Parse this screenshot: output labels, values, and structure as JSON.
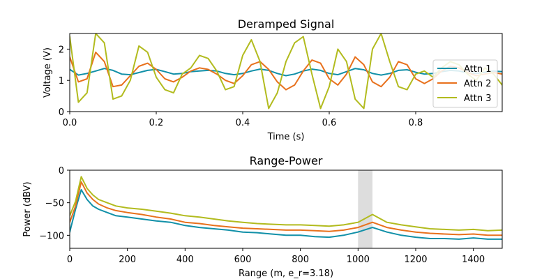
{
  "chart_data": [
    {
      "type": "line",
      "title": "Deramped Signal",
      "xlabel": "Time (s)",
      "ylabel": "Voltage (V)",
      "xlim": [
        0,
        1
      ],
      "ylim": [
        0,
        2.5
      ],
      "xticks": [
        0.0,
        0.2,
        0.4,
        0.6,
        0.8
      ],
      "xtick_labels": [
        "0.0",
        "0.2",
        "0.4",
        "0.6",
        "0.8"
      ],
      "yticks": [
        0,
        1,
        2
      ],
      "ytick_labels": [
        "0",
        "1",
        "2"
      ],
      "legend": {
        "position": "right",
        "entries": [
          "Attn 1",
          "Attn 2",
          "Attn 3"
        ]
      },
      "grid": false,
      "series": [
        {
          "name": "Attn 1",
          "color": "#1190a8",
          "x": [
            0.0,
            0.02,
            0.04,
            0.06,
            0.08,
            0.1,
            0.12,
            0.14,
            0.16,
            0.18,
            0.2,
            0.22,
            0.24,
            0.26,
            0.28,
            0.3,
            0.32,
            0.34,
            0.36,
            0.38,
            0.4,
            0.42,
            0.44,
            0.46,
            0.48,
            0.5,
            0.52,
            0.54,
            0.56,
            0.58,
            0.6,
            0.62,
            0.64,
            0.66,
            0.68,
            0.7,
            0.72,
            0.74,
            0.76,
            0.78,
            0.8,
            0.82,
            0.84,
            0.86,
            0.88,
            0.9,
            0.92,
            0.94,
            0.96,
            0.98,
            1.0
          ],
          "y": [
            1.35,
            1.17,
            1.22,
            1.3,
            1.38,
            1.32,
            1.2,
            1.18,
            1.25,
            1.32,
            1.35,
            1.28,
            1.2,
            1.22,
            1.28,
            1.3,
            1.32,
            1.3,
            1.22,
            1.18,
            1.22,
            1.3,
            1.36,
            1.32,
            1.22,
            1.15,
            1.2,
            1.3,
            1.36,
            1.32,
            1.22,
            1.18,
            1.28,
            1.38,
            1.34,
            1.22,
            1.17,
            1.22,
            1.32,
            1.34,
            1.26,
            1.2,
            1.22,
            1.28,
            1.32,
            1.3,
            1.24,
            1.22,
            1.26,
            1.3,
            1.28
          ]
        },
        {
          "name": "Attn 2",
          "color": "#e8711d",
          "x": [
            0.0,
            0.02,
            0.04,
            0.06,
            0.08,
            0.1,
            0.12,
            0.14,
            0.16,
            0.18,
            0.2,
            0.22,
            0.24,
            0.26,
            0.28,
            0.3,
            0.32,
            0.34,
            0.36,
            0.38,
            0.4,
            0.42,
            0.44,
            0.46,
            0.48,
            0.5,
            0.52,
            0.54,
            0.56,
            0.58,
            0.6,
            0.62,
            0.64,
            0.66,
            0.68,
            0.7,
            0.72,
            0.74,
            0.76,
            0.78,
            0.8,
            0.82,
            0.84,
            0.86,
            0.88,
            0.9,
            0.92,
            0.94,
            0.96,
            0.98,
            1.0
          ],
          "y": [
            1.75,
            0.95,
            1.05,
            1.9,
            1.6,
            0.8,
            0.85,
            1.15,
            1.45,
            1.55,
            1.35,
            1.05,
            0.95,
            1.1,
            1.3,
            1.4,
            1.35,
            1.2,
            1.0,
            0.9,
            1.15,
            1.5,
            1.6,
            1.35,
            0.95,
            0.7,
            0.85,
            1.3,
            1.65,
            1.55,
            1.05,
            0.85,
            1.2,
            1.75,
            1.5,
            0.95,
            0.8,
            1.1,
            1.6,
            1.5,
            1.05,
            0.9,
            1.05,
            1.3,
            1.45,
            1.4,
            1.25,
            1.15,
            1.2,
            1.25,
            1.2
          ]
        },
        {
          "name": "Attn 3",
          "color": "#b2bb1e",
          "x": [
            0.0,
            0.02,
            0.04,
            0.06,
            0.08,
            0.1,
            0.12,
            0.14,
            0.16,
            0.18,
            0.2,
            0.22,
            0.24,
            0.26,
            0.28,
            0.3,
            0.32,
            0.34,
            0.36,
            0.38,
            0.4,
            0.42,
            0.44,
            0.46,
            0.48,
            0.5,
            0.52,
            0.54,
            0.56,
            0.58,
            0.6,
            0.62,
            0.64,
            0.66,
            0.68,
            0.7,
            0.72,
            0.74,
            0.76,
            0.78,
            0.8,
            0.82,
            0.84,
            0.86,
            0.88,
            0.9,
            0.92,
            0.94,
            0.96,
            0.98,
            1.0
          ],
          "y": [
            2.4,
            0.3,
            0.6,
            2.5,
            2.2,
            0.4,
            0.5,
            1.0,
            2.1,
            1.9,
            1.1,
            0.7,
            0.6,
            1.2,
            1.4,
            1.8,
            1.7,
            1.3,
            0.7,
            0.8,
            1.8,
            2.3,
            1.6,
            0.1,
            0.6,
            1.6,
            2.2,
            2.4,
            1.2,
            0.1,
            0.8,
            2.0,
            1.6,
            0.4,
            0.1,
            2.0,
            2.5,
            1.6,
            0.8,
            0.7,
            1.2,
            1.3,
            1.1,
            1.4,
            1.6,
            1.5,
            1.2,
            1.0,
            1.4,
            1.2,
            0.85
          ]
        }
      ]
    },
    {
      "type": "line",
      "title": "Range-Power",
      "xlabel": "Range (m, e_r=3.18)",
      "ylabel": "Power (dBV)",
      "xlim": [
        0,
        1500
      ],
      "ylim": [
        -120,
        0
      ],
      "xticks": [
        0,
        200,
        400,
        600,
        800,
        1000,
        1200,
        1400
      ],
      "xtick_labels": [
        "0",
        "200",
        "400",
        "600",
        "800",
        "1000",
        "1200",
        "1400"
      ],
      "yticks": [
        0,
        -50,
        -100
      ],
      "ytick_labels": [
        "0",
        "−50",
        "−100"
      ],
      "grid": false,
      "highlight_band": {
        "x0": 1000,
        "x1": 1050,
        "color": "#dddddd"
      },
      "series": [
        {
          "name": "Attn 1",
          "color": "#1190a8",
          "x": [
            0,
            20,
            40,
            60,
            80,
            100,
            130,
            160,
            200,
            250,
            300,
            350,
            400,
            450,
            500,
            550,
            600,
            650,
            700,
            750,
            800,
            850,
            900,
            950,
            1000,
            1050,
            1100,
            1150,
            1200,
            1250,
            1300,
            1350,
            1400,
            1450,
            1500
          ],
          "y": [
            -95,
            -60,
            -30,
            -45,
            -55,
            -60,
            -65,
            -70,
            -72,
            -75,
            -78,
            -80,
            -85,
            -88,
            -90,
            -92,
            -95,
            -96,
            -98,
            -100,
            -100,
            -102,
            -103,
            -100,
            -95,
            -88,
            -95,
            -100,
            -103,
            -105,
            -105,
            -106,
            -104,
            -106,
            -106
          ]
        },
        {
          "name": "Attn 2",
          "color": "#e8711d",
          "x": [
            0,
            20,
            40,
            60,
            80,
            100,
            130,
            160,
            200,
            250,
            300,
            350,
            400,
            450,
            500,
            550,
            600,
            650,
            700,
            750,
            800,
            850,
            900,
            950,
            1000,
            1050,
            1100,
            1150,
            1200,
            1250,
            1300,
            1350,
            1400,
            1450,
            1500
          ],
          "y": [
            -80,
            -55,
            -18,
            -35,
            -45,
            -52,
            -58,
            -62,
            -65,
            -68,
            -72,
            -75,
            -80,
            -82,
            -85,
            -87,
            -89,
            -90,
            -91,
            -92,
            -92,
            -93,
            -94,
            -92,
            -88,
            -80,
            -88,
            -92,
            -95,
            -97,
            -98,
            -99,
            -98,
            -100,
            -100
          ]
        },
        {
          "name": "Attn 3",
          "color": "#b2bb1e",
          "x": [
            0,
            20,
            40,
            60,
            80,
            100,
            130,
            160,
            200,
            250,
            300,
            350,
            400,
            450,
            500,
            550,
            600,
            650,
            700,
            750,
            800,
            850,
            900,
            950,
            1000,
            1050,
            1100,
            1150,
            1200,
            1250,
            1300,
            1350,
            1400,
            1450,
            1500
          ],
          "y": [
            -70,
            -48,
            -10,
            -28,
            -38,
            -45,
            -50,
            -55,
            -58,
            -60,
            -63,
            -66,
            -70,
            -72,
            -75,
            -78,
            -80,
            -82,
            -83,
            -84,
            -84,
            -85,
            -86,
            -84,
            -80,
            -68,
            -80,
            -84,
            -87,
            -90,
            -91,
            -92,
            -91,
            -93,
            -92
          ]
        }
      ]
    }
  ]
}
